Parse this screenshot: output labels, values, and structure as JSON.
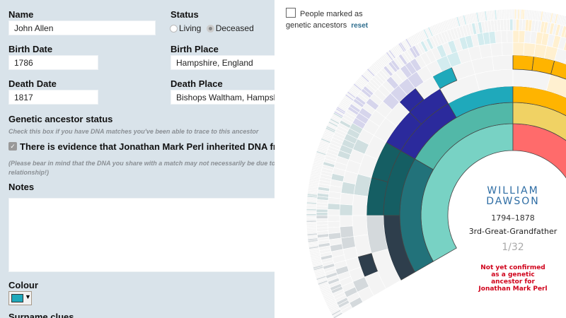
{
  "form": {
    "name_label": "Name",
    "name_value": "John Allen",
    "status_label": "Status",
    "status_options": [
      "Living",
      "Deceased"
    ],
    "status_selected": "Deceased",
    "birth_date_label": "Birth Date",
    "birth_date_value": "1786",
    "birth_place_label": "Birth Place",
    "birth_place_value": "Hampshire, England",
    "death_date_label": "Death Date",
    "death_date_value": "1817",
    "death_place_label": "Death Place",
    "death_place_value": "Bishops Waltham, Hampshire",
    "genetic_heading": "Genetic ancestor status",
    "genetic_hint": "Check this box if you have DNA matches you've been able to trace to this ancestor",
    "genetic_checkbox_label": "There is evidence that Jonathan Mark Perl inherited DNA from John Allen",
    "genetic_checked": true,
    "genetic_note_line1": "(Please bear in mind that the DNA you share with a match may not necessarily be due to this",
    "genetic_note_line2": "relationship!)",
    "notes_label": "Notes",
    "notes_value": "",
    "colour_label": "Colour",
    "colour_value": "#1fa9bb",
    "surname_label": "Surname clues"
  },
  "legend": {
    "label_line1": "People marked as",
    "label_line2": "genetic ancestors",
    "reset": "reset"
  },
  "center": {
    "first_name": "WILLIAM",
    "last_name": "DAWSON",
    "dates": "1794–1878",
    "relationship": "3rd-Great-Grandfather",
    "count": "1/32",
    "warning": "Not yet confirmed as a genetic ancestor for Jonathan Mark Perl"
  },
  "colors": {
    "panel_bg": "#d9e3ea",
    "father": "#78d2c4",
    "mother": "#ff6b6b",
    "paternal_grandparents": [
      "#52b8a8",
      "#22727a"
    ],
    "maternal_grandparent": "#f0d264",
    "gen3_left": [
      "#1fa9bb",
      "#2b2a9c",
      "#155e63",
      "#2e3e4c"
    ],
    "gen3_right": "#ffb400",
    "warning": "#d0021b",
    "name": "#2e6da4"
  }
}
